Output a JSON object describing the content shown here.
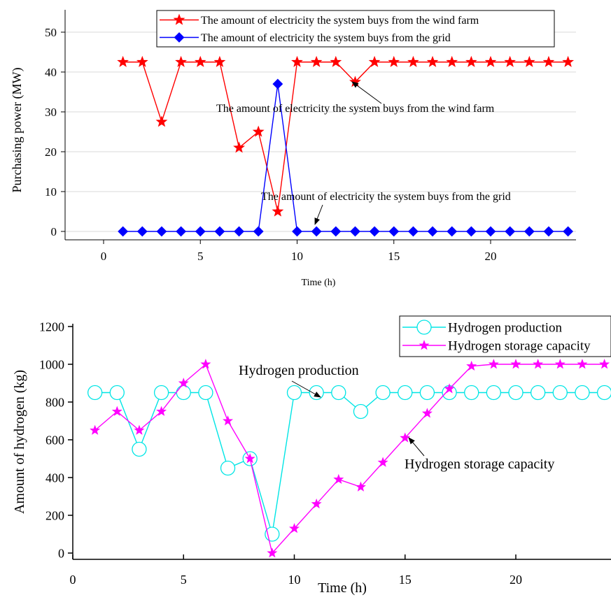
{
  "chart_data": [
    {
      "type": "line",
      "title": "",
      "xlabel": "Time (h)",
      "ylabel": "Purchasing power (MW)",
      "xlim": [
        -2,
        24.5
      ],
      "ylim": [
        -2,
        52
      ],
      "xticks": [
        0,
        5,
        10,
        15,
        20
      ],
      "yticks": [
        0,
        10,
        20,
        30,
        40,
        50
      ],
      "grid": "horizontal",
      "legend_position": "top-right",
      "x": [
        1,
        2,
        3,
        4,
        5,
        6,
        7,
        8,
        9,
        10,
        11,
        12,
        13,
        14,
        15,
        16,
        17,
        18,
        19,
        20,
        21,
        22,
        23,
        24
      ],
      "series": [
        {
          "name": "The amount of electricity the system buys from the wind farm",
          "color": "#ff0000",
          "marker": "star",
          "values": [
            42.5,
            42.5,
            27.5,
            42.5,
            42.5,
            42.5,
            21,
            25,
            5,
            42.5,
            42.5,
            42.5,
            37.5,
            42.5,
            42.5,
            42.5,
            42.5,
            42.5,
            42.5,
            42.5,
            42.5,
            42.5,
            42.5,
            42.5
          ]
        },
        {
          "name": "The amount of electricity the system buys from the grid",
          "color": "#0000ff",
          "marker": "diamond",
          "values": [
            0,
            0,
            0,
            0,
            0,
            0,
            0,
            0,
            37,
            0,
            0,
            0,
            0,
            0,
            0,
            0,
            0,
            0,
            0,
            0,
            0,
            0,
            0,
            0
          ]
        }
      ],
      "annotations": [
        {
          "text": "The amount of electricity the system buys from the wind farm",
          "x": 13,
          "y": 37.5
        },
        {
          "text": "The amount of electricity the system buys from the grid",
          "x": 11,
          "y": 0
        }
      ]
    },
    {
      "type": "line",
      "title": "",
      "xlabel": "Time (h)",
      "ylabel": "Amount of hydrogen (kg)",
      "xlim": [
        0,
        24.5
      ],
      "ylim": [
        -30,
        1200
      ],
      "xticks": [
        0,
        5,
        10,
        15,
        20
      ],
      "yticks": [
        0,
        200,
        400,
        600,
        800,
        1000,
        1200
      ],
      "grid": "none",
      "legend_position": "top-right",
      "x": [
        1,
        2,
        3,
        4,
        5,
        6,
        7,
        8,
        9,
        10,
        11,
        12,
        13,
        14,
        15,
        16,
        17,
        18,
        19,
        20,
        21,
        22,
        23,
        24
      ],
      "series": [
        {
          "name": "Hydrogen production",
          "color": "#00e5e5",
          "marker": "circle",
          "values": [
            850,
            850,
            550,
            850,
            850,
            850,
            450,
            500,
            100,
            850,
            850,
            850,
            750,
            850,
            850,
            850,
            850,
            850,
            850,
            850,
            850,
            850,
            850,
            850
          ]
        },
        {
          "name": "Hydrogen storage capacity",
          "color": "#ff00ff",
          "marker": "star",
          "values": [
            650,
            750,
            650,
            750,
            900,
            1000,
            700,
            500,
            0,
            130,
            260,
            390,
            350,
            480,
            610,
            740,
            870,
            990,
            1000,
            1000,
            1000,
            1000,
            1000,
            1000
          ]
        }
      ],
      "annotations": [
        {
          "text": "Hydrogen production",
          "x": 11,
          "y": 850
        },
        {
          "text": "Hydrogen storage capacity",
          "x": 15,
          "y": 610
        }
      ]
    }
  ]
}
